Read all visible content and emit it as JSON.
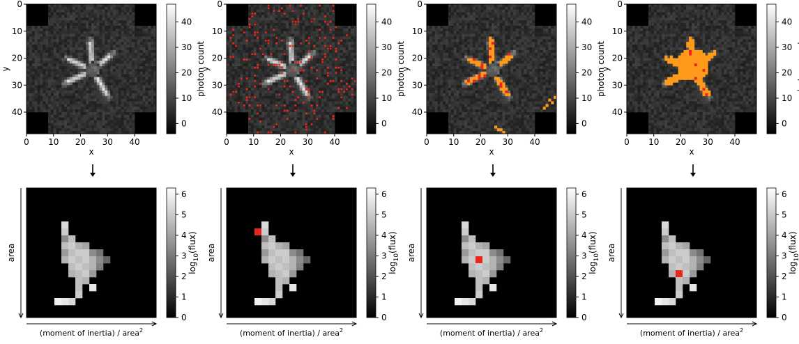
{
  "chart_data": [
    {
      "type": "heatmap",
      "panel": "top-1",
      "xlabel": "x",
      "ylabel": "y",
      "xlim": [
        0,
        48
      ],
      "ylim": [
        48,
        0
      ],
      "x_ticks": [
        "0",
        "10",
        "20",
        "30",
        "40"
      ],
      "y_ticks": [
        "0",
        "10",
        "20",
        "30",
        "40"
      ],
      "colormap": "gray",
      "colorbar": {
        "label": "photon count",
        "range": [
          -4,
          47
        ],
        "ticks": [
          "0",
          "10",
          "20",
          "30",
          "40"
        ]
      },
      "overlay": "none"
    },
    {
      "type": "heatmap",
      "panel": "top-2",
      "xlabel": "x",
      "ylabel": "y",
      "xlim": [
        0,
        48
      ],
      "ylim": [
        48,
        0
      ],
      "x_ticks": [
        "0",
        "10",
        "20",
        "30",
        "40"
      ],
      "y_ticks": [
        "0",
        "10",
        "20",
        "30",
        "40"
      ],
      "colormap": "gray",
      "colorbar": {
        "label": "photon count",
        "range": [
          -4,
          47
        ],
        "ticks": [
          "0",
          "10",
          "20",
          "30",
          "40"
        ]
      },
      "overlay": "scattered red pixels over the whole image",
      "overlay_color": "#e8261b"
    },
    {
      "type": "heatmap",
      "panel": "top-3",
      "xlabel": "x",
      "ylabel": "y",
      "xlim": [
        0,
        48
      ],
      "ylim": [
        48,
        0
      ],
      "x_ticks": [
        "0",
        "10",
        "20",
        "30",
        "40"
      ],
      "y_ticks": [
        "0",
        "10",
        "20",
        "30",
        "40"
      ],
      "colormap": "gray",
      "colorbar": {
        "label": "photon count",
        "range": [
          -4,
          47
        ],
        "ticks": [
          "0",
          "10",
          "20",
          "30",
          "40"
        ]
      },
      "overlay": "orange pixels along the bright streaks with a few red pixels",
      "overlay_color": "#ff9a1a"
    },
    {
      "type": "heatmap",
      "panel": "top-4",
      "xlabel": "x",
      "ylabel": "y",
      "xlim": [
        0,
        48
      ],
      "ylim": [
        48,
        0
      ],
      "x_ticks": [
        "0",
        "10",
        "20",
        "30",
        "40"
      ],
      "y_ticks": [
        "0",
        "10",
        "20",
        "30",
        "40"
      ],
      "colormap": "gray",
      "colorbar": {
        "label": "photon count",
        "range": [
          -4,
          47
        ],
        "ticks": [
          "0",
          "10",
          "20",
          "30",
          "40"
        ]
      },
      "overlay": "connected orange region covering the central star-shaped source",
      "overlay_color": "#ff9a1a"
    },
    {
      "type": "heatmap",
      "panel": "bottom-1",
      "xlabel": "(moment of inertia) / area²",
      "ylabel": "area",
      "colormap": "gray",
      "colorbar": {
        "label": "log₁₀(flux)",
        "range": [
          0,
          6.3
        ],
        "ticks": [
          "0",
          "1",
          "2",
          "3",
          "4",
          "5",
          "6"
        ]
      },
      "highlight": null
    },
    {
      "type": "heatmap",
      "panel": "bottom-2",
      "xlabel": "(moment of inertia) / area²",
      "ylabel": "area",
      "colormap": "gray",
      "colorbar": {
        "label": "log₁₀(flux)",
        "range": [
          0,
          6.3
        ],
        "ticks": [
          "0",
          "1",
          "2",
          "3",
          "4",
          "5",
          "6"
        ]
      },
      "highlight": {
        "cell": [
          3,
          5
        ],
        "color": "#e8261b"
      }
    },
    {
      "type": "heatmap",
      "panel": "bottom-3",
      "xlabel": "(moment of inertia) / area²",
      "ylabel": "area",
      "colormap": "gray",
      "colorbar": {
        "label": "log₁₀(flux)",
        "range": [
          0,
          6.3
        ],
        "ticks": [
          "0",
          "1",
          "2",
          "3",
          "4",
          "5",
          "6"
        ]
      },
      "highlight": {
        "cell": [
          6,
          9
        ],
        "color": "#e8261b"
      }
    },
    {
      "type": "heatmap",
      "panel": "bottom-4",
      "xlabel": "(moment of inertia) / area²",
      "ylabel": "area",
      "colormap": "gray",
      "colorbar": {
        "label": "log₁₀(flux)",
        "range": [
          0,
          6.3
        ],
        "ticks": [
          "0",
          "1",
          "2",
          "3",
          "4",
          "5",
          "6"
        ]
      },
      "highlight": {
        "cell": [
          6,
          11
        ],
        "color": "#e8261b"
      }
    }
  ],
  "labels": {
    "x": "x",
    "y": "y",
    "photon_count": "photon count",
    "flux_prefix": "log",
    "flux_sub": "10",
    "flux_suffix": "(flux)",
    "area": "area",
    "moment": "(moment of inertia) / area",
    "sq": "2"
  },
  "colors": {
    "highlight": "#e8261b",
    "overlay": "#ff9a1a",
    "background": "#000000"
  }
}
